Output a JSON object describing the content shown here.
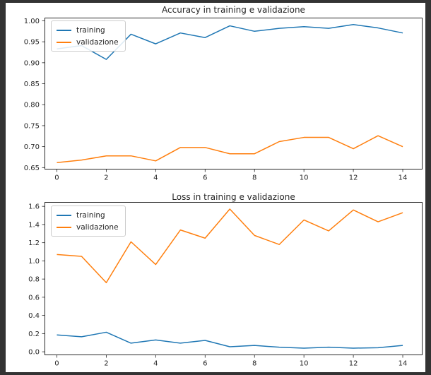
{
  "window": {
    "frame_color": "#333333",
    "canvas_color": "#ffffff"
  },
  "style": {
    "line_width": 1.5,
    "spine_color": "#262626",
    "tick_color": "#262626",
    "text_color": "#262626",
    "tick_font_size": 10,
    "legend_border": "#cccccc"
  },
  "chart_data": [
    {
      "type": "line",
      "title": "Accuracy in training e validazione",
      "xlabel": "",
      "ylabel": "",
      "x": [
        0,
        1,
        2,
        3,
        4,
        5,
        6,
        7,
        8,
        9,
        10,
        11,
        12,
        13,
        14
      ],
      "series": [
        {
          "name": "training",
          "color": "#1f77b4",
          "values": [
            0.933,
            0.941,
            0.908,
            0.968,
            0.945,
            0.971,
            0.96,
            0.988,
            0.975,
            0.982,
            0.986,
            0.982,
            0.991,
            0.983,
            0.971
          ]
        },
        {
          "name": "validazione",
          "color": "#ff7f0e",
          "values": [
            0.662,
            0.668,
            0.678,
            0.678,
            0.666,
            0.698,
            0.698,
            0.683,
            0.683,
            0.712,
            0.722,
            0.722,
            0.695,
            0.726,
            0.7
          ]
        }
      ],
      "xticks": [
        "0",
        "2",
        "4",
        "6",
        "8",
        "10",
        "12",
        "14"
      ],
      "yticks": [
        "1.00",
        "0.95",
        "0.90",
        "0.85",
        "0.80",
        "0.75",
        "0.70",
        "0.65"
      ],
      "xlim": [
        -0.5,
        14.8
      ],
      "ylim": [
        0.6455,
        1.0075
      ],
      "grid": false,
      "legend_position": "upper left"
    },
    {
      "type": "line",
      "title": "Loss in training e validazione",
      "xlabel": "",
      "ylabel": "",
      "x": [
        0,
        1,
        2,
        3,
        4,
        5,
        6,
        7,
        8,
        9,
        10,
        11,
        12,
        13,
        14
      ],
      "series": [
        {
          "name": "training",
          "color": "#1f77b4",
          "values": [
            0.185,
            0.165,
            0.215,
            0.095,
            0.13,
            0.095,
            0.125,
            0.055,
            0.07,
            0.05,
            0.04,
            0.05,
            0.04,
            0.045,
            0.07
          ]
        },
        {
          "name": "validazione",
          "color": "#ff7f0e",
          "values": [
            1.07,
            1.05,
            0.76,
            1.21,
            0.96,
            1.34,
            1.25,
            1.57,
            1.28,
            1.18,
            1.45,
            1.33,
            1.56,
            1.43,
            1.53
          ]
        }
      ],
      "xticks": [
        "0",
        "2",
        "4",
        "6",
        "8",
        "10",
        "12",
        "14"
      ],
      "yticks": [
        "1.6",
        "1.4",
        "1.2",
        "1.0",
        "0.8",
        "0.6",
        "0.4",
        "0.2",
        "0.0"
      ],
      "xlim": [
        -0.5,
        14.8
      ],
      "ylim": [
        -0.038,
        1.648
      ],
      "grid": false,
      "legend_position": "upper left"
    }
  ]
}
